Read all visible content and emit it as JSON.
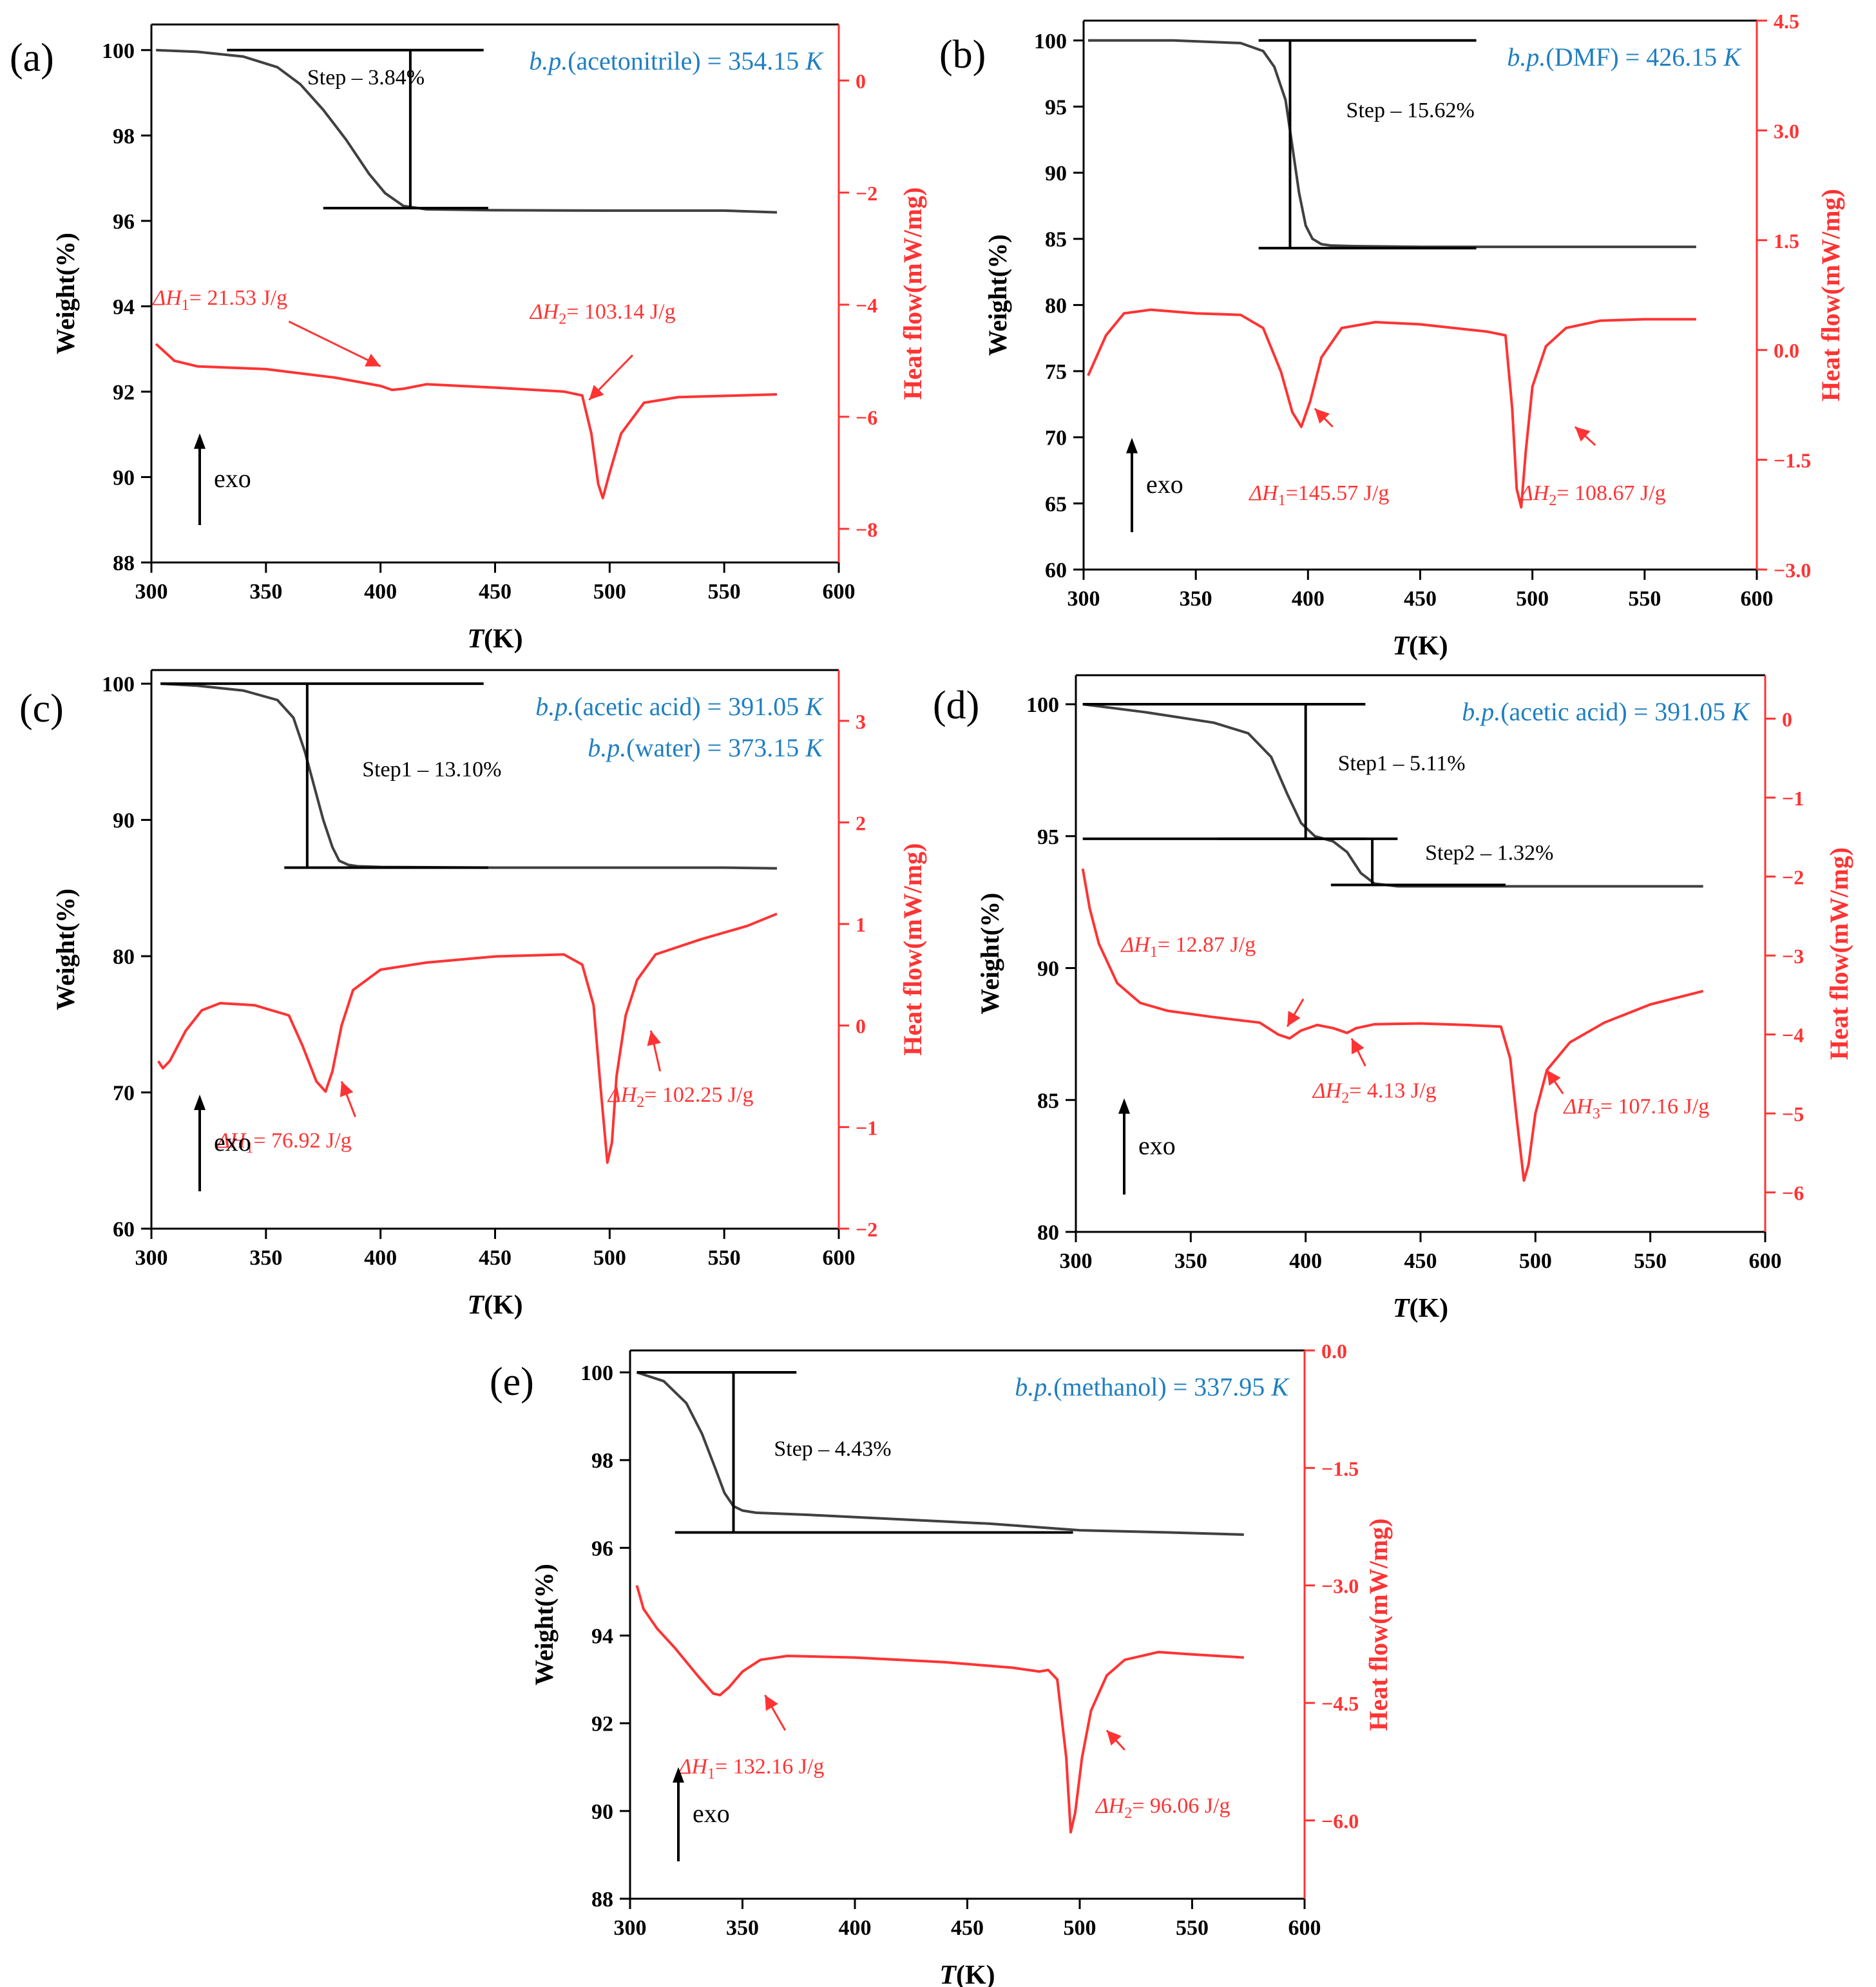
{
  "figure": {
    "colors": {
      "weight": "#404040",
      "heat": "#ff3333",
      "bp": "#1f7fc1",
      "axis": "#000000",
      "black": "#000000"
    }
  },
  "chart_data": [
    {
      "id": "a",
      "type": "line",
      "panel_label": "(a)",
      "xlabel_var": "T",
      "xlabel_unit": "(K)",
      "ylabel_left": "Weight(%)",
      "ylabel_right": "Heat flow(mW/mg)",
      "xlim": [
        300,
        600
      ],
      "xticks": [
        300,
        350,
        400,
        450,
        500,
        550,
        600
      ],
      "ylim_left": [
        88,
        100.6
      ],
      "yticks_left": [
        88,
        90,
        92,
        94,
        96,
        98,
        100
      ],
      "ylim_right": [
        -8.6,
        1.0
      ],
      "yticks_right": [
        -8,
        -6,
        -4,
        -2,
        0
      ],
      "yticks_right_labels": [
        "-8",
        "-6",
        "-4",
        "-2",
        "0"
      ],
      "bp": {
        "prefix": "b.p.",
        "solvent": "(acetonitrile)",
        "value": " = 354.15",
        "unit": "K"
      },
      "bp_lines": [
        {
          "prefix": "b.p.",
          "solvent": "(acetonitrile)",
          "value": " = 354.15",
          "unit": "K"
        }
      ],
      "steps": [
        {
          "label": "Step – 3.84%",
          "x_left": 333,
          "x_right": 445,
          "y_top": 100.0,
          "y_bottom": 96.3,
          "x_vert": 413,
          "label_x": 368,
          "label_y": 99.2
        }
      ],
      "enthalpies": [
        {
          "sym": "ΔH",
          "sub": "1",
          "text": "= 21.53 J/g",
          "tx": 330,
          "ty": -4.0,
          "ax": 360,
          "ay": -4.3,
          "px": 400,
          "py": -5.1
        },
        {
          "sym": "ΔH",
          "sub": "2",
          "text": "= 103.14 J/g",
          "tx": 497,
          "ty": -4.25,
          "ax": 510,
          "ay": -4.9,
          "px": 491,
          "py": -5.7
        }
      ],
      "exo_label": "exo",
      "weight_curve": {
        "x": [
          302,
          320,
          340,
          355,
          365,
          375,
          385,
          395,
          402,
          410,
          420,
          450,
          500,
          550,
          573
        ],
        "y": [
          100.0,
          99.96,
          99.85,
          99.6,
          99.2,
          98.6,
          97.9,
          97.1,
          96.65,
          96.35,
          96.27,
          96.25,
          96.24,
          96.24,
          96.2
        ]
      },
      "heat_curve": {
        "x": [
          302,
          310,
          320,
          350,
          380,
          400,
          405,
          410,
          420,
          450,
          480,
          488,
          492,
          495,
          497,
          500,
          505,
          515,
          530,
          573
        ],
        "y": [
          -4.7,
          -5.0,
          -5.1,
          -5.15,
          -5.3,
          -5.45,
          -5.52,
          -5.5,
          -5.42,
          -5.48,
          -5.55,
          -5.62,
          -6.3,
          -7.2,
          -7.45,
          -7.0,
          -6.3,
          -5.75,
          -5.65,
          -5.6
        ]
      }
    },
    {
      "id": "b",
      "type": "line",
      "panel_label": "(b)",
      "xlabel_var": "T",
      "xlabel_unit": "(K)",
      "ylabel_left": "Weight(%)",
      "ylabel_right": "Heat flow(mW/mg)",
      "xlim": [
        300,
        600
      ],
      "xticks": [
        300,
        350,
        400,
        450,
        500,
        550,
        600
      ],
      "ylim_left": [
        60,
        101.5
      ],
      "yticks_left": [
        60,
        65,
        70,
        75,
        80,
        85,
        90,
        95,
        100
      ],
      "ylim_right": [
        -3.0,
        4.5
      ],
      "yticks_right": [
        -3.0,
        -1.5,
        0.0,
        1.5,
        3.0,
        4.5
      ],
      "yticks_right_labels": [
        "-3.0",
        "-1.5",
        "0.0",
        "1.5",
        "3.0",
        "4.5"
      ],
      "bp": {
        "prefix": "b.p.",
        "solvent": "(DMF)",
        "value": " = 426.15",
        "unit": "K"
      },
      "bp_lines": [
        {
          "prefix": "b.p.",
          "solvent": "(DMF)",
          "value": " = 426.15",
          "unit": "K"
        }
      ],
      "steps": [
        {
          "label": "Step – 15.62%",
          "x_left": 378,
          "x_right": 475,
          "y_top": 100.0,
          "y_bottom": 84.3,
          "x_vert": 392,
          "label_x": 417,
          "label_y": 94.2
        }
      ],
      "enthalpies": [
        {
          "sym": "ΔH",
          "sub": "1",
          "text": "=145.57 J/g",
          "tx": 405,
          "ty": -2.05,
          "ax": 411,
          "ay": -1.05,
          "px": 403,
          "py": -0.8
        },
        {
          "sym": "ΔH",
          "sub": "2",
          "text": "= 108.67 J/g",
          "tx": 527,
          "ty": -2.05,
          "ax": 528,
          "ay": -1.3,
          "px": 519,
          "py": -1.05
        }
      ],
      "exo_label": "exo",
      "weight_curve": {
        "x": [
          302,
          340,
          370,
          380,
          385,
          390,
          393,
          396,
          399,
          402,
          406,
          410,
          420,
          450,
          500,
          550,
          573
        ],
        "y": [
          100.0,
          100.0,
          99.8,
          99.2,
          98.0,
          95.5,
          92.0,
          88.5,
          86.0,
          85.0,
          84.6,
          84.5,
          84.45,
          84.4,
          84.4,
          84.4,
          84.4
        ]
      },
      "heat_curve": {
        "x": [
          302,
          310,
          318,
          330,
          350,
          370,
          380,
          388,
          393,
          397,
          401,
          406,
          415,
          430,
          450,
          480,
          488,
          491,
          493,
          495,
          497,
          500,
          506,
          515,
          530,
          550,
          573
        ],
        "y": [
          -0.35,
          0.2,
          0.5,
          0.55,
          0.5,
          0.48,
          0.3,
          -0.3,
          -0.85,
          -1.05,
          -0.7,
          -0.1,
          0.3,
          0.38,
          0.35,
          0.25,
          0.2,
          -0.8,
          -1.9,
          -2.15,
          -1.4,
          -0.5,
          0.05,
          0.3,
          0.4,
          0.42,
          0.42
        ]
      }
    },
    {
      "id": "c",
      "type": "line",
      "panel_label": "(c)",
      "xlabel_var": "T",
      "xlabel_unit": "(K)",
      "ylabel_left": "Weight(%)",
      "ylabel_right": "Heat flow(mW/mg)",
      "xlim": [
        300,
        600
      ],
      "xticks": [
        300,
        350,
        400,
        450,
        500,
        550,
        600
      ],
      "ylim_left": [
        60,
        101
      ],
      "yticks_left": [
        60,
        70,
        80,
        90,
        100
      ],
      "ylim_right": [
        -2.0,
        3.5
      ],
      "yticks_right": [
        -2,
        -1,
        0,
        1,
        2,
        3
      ],
      "yticks_right_labels": [
        "-2",
        "-1",
        "0",
        "1",
        "2",
        "3"
      ],
      "bp": {
        "prefix": "b.p.",
        "solvent": "(acetic acid)",
        "value": " = 391.05",
        "unit": "K"
      },
      "bp_lines": [
        {
          "prefix": "b.p.",
          "solvent": "(acetic acid)",
          "value": " = 391.05",
          "unit": "K"
        },
        {
          "prefix": "b.p.",
          "solvent": "(water)",
          "value": " = 373.15",
          "unit": "K"
        }
      ],
      "steps": [
        {
          "label": "Step1 – 13.10%",
          "x_left": 304,
          "x_right": 445,
          "y_top": 100.0,
          "y_bottom": 86.5,
          "x_vert": 368,
          "label_x": 392,
          "label_y": 93.2
        }
      ],
      "enthalpies": [
        {
          "sym": "ΔH",
          "sub": "1",
          "text": "= 76.92 J/g",
          "tx": 358,
          "ty": -1.2,
          "ax": 389,
          "ay": -0.9,
          "px": 383,
          "py": -0.55
        },
        {
          "sym": "ΔH",
          "sub": "2",
          "text": "= 102.25 J/g",
          "tx": 531,
          "ty": -0.75,
          "ax": 522,
          "ay": -0.45,
          "px": 518,
          "py": -0.05
        }
      ],
      "exo_label": "exo",
      "weight_curve": {
        "x": [
          304,
          320,
          340,
          355,
          362,
          367,
          371,
          375,
          379,
          382,
          386,
          390,
          400,
          450,
          500,
          550,
          573
        ],
        "y": [
          100.0,
          99.85,
          99.5,
          98.8,
          97.5,
          95.0,
          92.5,
          90.0,
          88.0,
          87.0,
          86.7,
          86.6,
          86.55,
          86.5,
          86.5,
          86.5,
          86.45
        ]
      },
      "heat_curve": {
        "x": [
          303,
          305,
          308,
          315,
          322,
          330,
          345,
          360,
          366,
          372,
          376,
          379,
          383,
          388,
          400,
          420,
          450,
          480,
          488,
          493,
          496,
          499,
          501,
          503,
          507,
          512,
          520,
          540,
          560,
          573
        ],
        "y": [
          -0.35,
          -0.42,
          -0.35,
          -0.05,
          0.15,
          0.22,
          0.2,
          0.1,
          -0.2,
          -0.55,
          -0.65,
          -0.45,
          0.0,
          0.35,
          0.55,
          0.62,
          0.68,
          0.7,
          0.6,
          0.2,
          -0.6,
          -1.35,
          -1.15,
          -0.5,
          0.1,
          0.45,
          0.7,
          0.85,
          0.98,
          1.1
        ]
      }
    },
    {
      "id": "d",
      "type": "line",
      "panel_label": "(d)",
      "xlabel_var": "T",
      "xlabel_unit": "(K)",
      "ylabel_left": "Weight(%)",
      "ylabel_right": "Heat flow(mW/mg)",
      "xlim": [
        300,
        600
      ],
      "xticks": [
        300,
        350,
        400,
        450,
        500,
        550,
        600
      ],
      "ylim_left": [
        80,
        101.1
      ],
      "yticks_left": [
        80,
        85,
        90,
        95,
        100
      ],
      "ylim_right": [
        -6.5,
        0.55
      ],
      "yticks_right": [
        -6,
        -5,
        -4,
        -3,
        -2,
        -1,
        0
      ],
      "yticks_right_labels": [
        "-6",
        "-5",
        "-4",
        "-3",
        "-2",
        "-1",
        "0"
      ],
      "bp": {
        "prefix": "b.p.",
        "solvent": "(acetic acid)",
        "value": " = 391.05",
        "unit": "K"
      },
      "bp_lines": [
        {
          "prefix": "b.p.",
          "solvent": "(acetic acid)",
          "value": " = 391.05",
          "unit": "K"
        }
      ],
      "steps": [
        {
          "label": "Step1 – 5.11%",
          "x_left": 303,
          "x_right": 426,
          "y_top": 100.0,
          "y_bottom": 94.9,
          "x_vert": 400,
          "label_x": 414,
          "label_y": 97.5
        },
        {
          "label": "Step2 – 1.32%",
          "x_left": 362,
          "x_right": 440,
          "y_top": 94.9,
          "y_bottom": 93.15,
          "x_vert": 429,
          "label_x": 452,
          "label_y": 94.1,
          "low_left": 411,
          "low_right": 487
        }
      ],
      "enthalpies": [
        {
          "sym": "ΔH",
          "sub": "1",
          "text": "= 12.87 J/g",
          "tx": 349,
          "ty": -2.95,
          "ax": 399,
          "ay": -3.55,
          "px": 392,
          "py": -3.9
        },
        {
          "sym": "ΔH",
          "sub": "2",
          "text": "= 4.13 J/g",
          "tx": 430,
          "ty": -4.8,
          "ax": 426,
          "ay": -4.4,
          "px": 420,
          "py": -4.05
        },
        {
          "sym": "ΔH",
          "sub": "3",
          "text": "= 107.16 J/g",
          "tx": 544,
          "ty": -5.0,
          "ax": 512,
          "ay": -4.75,
          "px": 505,
          "py": -4.45
        }
      ],
      "exo_label": "exo",
      "weight_curve": {
        "x": [
          303,
          330,
          360,
          375,
          385,
          392,
          398,
          404,
          412,
          418,
          424,
          430,
          440,
          480,
          520,
          560,
          573
        ],
        "y": [
          100.0,
          99.7,
          99.3,
          98.9,
          98.0,
          96.6,
          95.5,
          95.0,
          94.8,
          94.4,
          93.6,
          93.2,
          93.1,
          93.1,
          93.1,
          93.1,
          93.1
        ]
      },
      "heat_curve": {
        "x": [
          303,
          306,
          310,
          318,
          328,
          340,
          360,
          380,
          388,
          393,
          398,
          405,
          412,
          418,
          422,
          430,
          450,
          470,
          485,
          489,
          492,
          495,
          497,
          500,
          505,
          515,
          530,
          550,
          573
        ],
        "y": [
          -1.9,
          -2.4,
          -2.85,
          -3.35,
          -3.6,
          -3.7,
          -3.78,
          -3.85,
          -4.0,
          -4.05,
          -3.95,
          -3.88,
          -3.92,
          -3.98,
          -3.92,
          -3.87,
          -3.86,
          -3.88,
          -3.9,
          -4.3,
          -5.1,
          -5.85,
          -5.65,
          -5.0,
          -4.45,
          -4.1,
          -3.85,
          -3.62,
          -3.45
        ]
      }
    },
    {
      "id": "e",
      "type": "line",
      "panel_label": "(e)",
      "xlabel_var": "T",
      "xlabel_unit": "(K)",
      "ylabel_left": "Weight(%)",
      "ylabel_right": "Heat flow(mW/mg)",
      "xlim": [
        300,
        600
      ],
      "xticks": [
        300,
        350,
        400,
        450,
        500,
        550,
        600
      ],
      "ylim_left": [
        88,
        100.5
      ],
      "yticks_left": [
        88,
        90,
        92,
        94,
        96,
        98,
        100
      ],
      "ylim_right": [
        -7.0,
        0.0
      ],
      "yticks_right": [
        -6.0,
        -4.5,
        -3.0,
        -1.5,
        0.0
      ],
      "yticks_right_labels": [
        "-6.0",
        "-4.5",
        "-3.0",
        "-1.5",
        "0.0"
      ],
      "bp": {
        "prefix": "b.p.",
        "solvent": "(methanol)",
        "value": " = 337.95",
        "unit": "K"
      },
      "bp_lines": [
        {
          "prefix": "b.p.",
          "solvent": "(methanol)",
          "value": " = 337.95",
          "unit": "K"
        }
      ],
      "steps": [
        {
          "label": "Step – 4.43%",
          "x_left": 303,
          "x_right": 374,
          "y_top": 100.0,
          "y_bottom": 96.35,
          "x_vert": 346,
          "label_x": 364,
          "label_y": 98.1,
          "low_left": 320,
          "low_right": 497
        }
      ],
      "enthalpies": [
        {
          "sym": "ΔH",
          "sub": "1",
          "text": "= 132.16 J/g",
          "tx": 354,
          "ty": -5.4,
          "ax": 369,
          "ay": -4.85,
          "px": 360,
          "py": -4.4
        },
        {
          "sym": "ΔH",
          "sub": "2",
          "text": "= 96.06 J/g",
          "tx": 537,
          "ty": -5.9,
          "ax": 520,
          "ay": -5.1,
          "px": 512,
          "py": -4.85
        }
      ],
      "exo_label": "exo",
      "weight_curve": {
        "x": [
          303,
          315,
          325,
          332,
          338,
          342,
          346,
          350,
          356,
          380,
          420,
          460,
          500,
          540,
          573
        ],
        "y": [
          100.0,
          99.8,
          99.3,
          98.6,
          97.8,
          97.25,
          96.95,
          96.85,
          96.8,
          96.75,
          96.65,
          96.55,
          96.4,
          96.35,
          96.3
        ]
      },
      "heat_curve": {
        "x": [
          303,
          306,
          312,
          320,
          330,
          337,
          340,
          344,
          350,
          358,
          370,
          400,
          440,
          470,
          482,
          486,
          490,
          494,
          496,
          498,
          501,
          505,
          512,
          520,
          535,
          550,
          573
        ],
        "y": [
          -3.0,
          -3.3,
          -3.55,
          -3.8,
          -4.15,
          -4.38,
          -4.4,
          -4.3,
          -4.1,
          -3.95,
          -3.9,
          -3.92,
          -3.98,
          -4.05,
          -4.1,
          -4.08,
          -4.2,
          -5.2,
          -6.15,
          -5.9,
          -5.2,
          -4.6,
          -4.15,
          -3.95,
          -3.85,
          -3.88,
          -3.92
        ]
      }
    }
  ]
}
